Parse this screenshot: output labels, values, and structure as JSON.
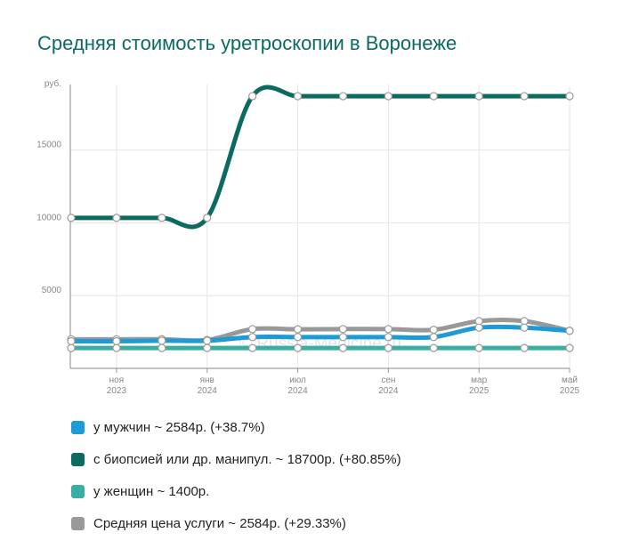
{
  "title": "Средняя стоимость уретроскопии в Воронеже",
  "watermark": "© Russia-Medicine.ru",
  "colors": {
    "title": "#0b6b62",
    "men": "#1e9ad6",
    "biopsy": "#0a6b5e",
    "women": "#3aaea0",
    "average": "#999999"
  },
  "chart_data": {
    "type": "line",
    "ylabel": "руб.",
    "ylim": [
      0,
      19500
    ],
    "yticks": [
      5000,
      10000,
      15000
    ],
    "xticks": [
      {
        "i": 1,
        "month": "ноя",
        "year": "2023"
      },
      {
        "i": 3,
        "month": "янв",
        "year": "2024"
      },
      {
        "i": 5,
        "month": "июл",
        "year": "2024"
      },
      {
        "i": 7,
        "month": "сен",
        "year": "2024"
      },
      {
        "i": 9,
        "month": "мар",
        "year": "2025"
      },
      {
        "i": 11,
        "month": "май",
        "year": "2025"
      }
    ],
    "point_count": 12,
    "series": [
      {
        "key": "average",
        "name": "Средняя цена услуги ~ 2584р. (+29.33%)",
        "values": [
          1998,
          1998,
          2000,
          1950,
          2700,
          2680,
          2700,
          2700,
          2650,
          3250,
          3250,
          2584
        ]
      },
      {
        "key": "women",
        "name": "у женщин ~ 1400р.",
        "values": [
          1400,
          1400,
          1400,
          1400,
          1400,
          1400,
          1400,
          1400,
          1400,
          1400,
          1400,
          1400
        ]
      },
      {
        "key": "men",
        "name": "у мужчин ~ 2584р. (+38.7%)",
        "values": [
          1863,
          1863,
          1900,
          1900,
          2150,
          2150,
          2150,
          2150,
          2150,
          2800,
          2800,
          2584
        ]
      },
      {
        "key": "biopsy",
        "name": "с биопсией или др. манипул. ~ 18700р. (+80.85%)",
        "values": [
          10340,
          10340,
          10340,
          10340,
          18700,
          18700,
          18700,
          18700,
          18700,
          18700,
          18700,
          18700
        ]
      }
    ],
    "legend_order": [
      "men",
      "biopsy",
      "women",
      "average"
    ]
  }
}
